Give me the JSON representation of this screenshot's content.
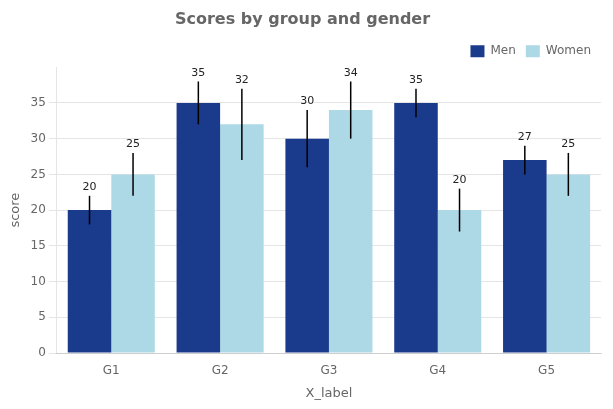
{
  "chart_data": {
    "type": "bar",
    "title": "Scores by group and gender",
    "xlabel": "X_label",
    "ylabel": "score",
    "categories": [
      "G1",
      "G2",
      "G3",
      "G4",
      "G5"
    ],
    "series": [
      {
        "name": "Men",
        "color": "#1a3a8c",
        "values": [
          20,
          35,
          30,
          35,
          27
        ],
        "errors": [
          2,
          3,
          4,
          2,
          2
        ]
      },
      {
        "name": "Women",
        "color": "#add8e6",
        "values": [
          25,
          32,
          34,
          20,
          25
        ],
        "errors": [
          3,
          5,
          4,
          3,
          3
        ]
      }
    ],
    "ylim": [
      0,
      40
    ],
    "yticks": [
      0,
      5,
      10,
      15,
      20,
      25,
      30,
      35
    ],
    "grid": true,
    "legend": "upper right",
    "data_labels": true
  }
}
